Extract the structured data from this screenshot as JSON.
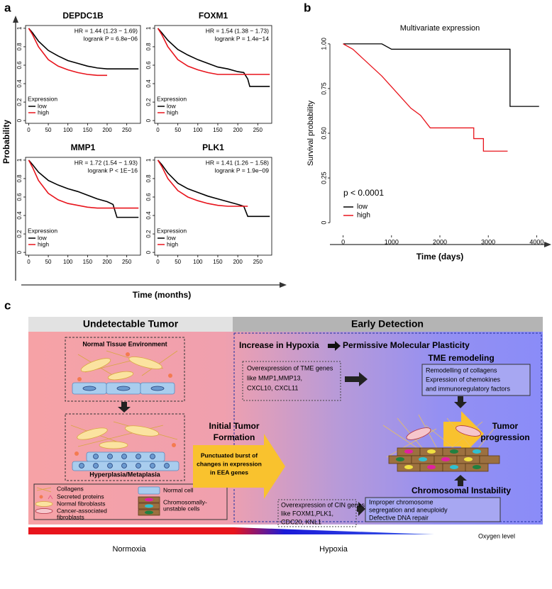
{
  "panel_a": {
    "label": "a",
    "xlabel": "Time (months)",
    "ylabel": "Probability"
  },
  "panel_b": {
    "label": "b"
  },
  "chart_data": [
    {
      "type": "line",
      "title": "DEPDC1B",
      "annotations": [
        "HR = 1.44 (1.23 − 1.69)",
        "logrank P = 6.8e−06"
      ],
      "legend_title": "Expression",
      "xlim": [
        -8,
        285
      ],
      "xticks": [
        0,
        50,
        100,
        150,
        200,
        250
      ],
      "ylim": [
        -0.03,
        1.03
      ],
      "yticks": [
        0,
        0.2,
        0.4,
        0.6,
        0.8,
        1
      ],
      "series": [
        {
          "name": "low",
          "color": "#000000",
          "x": [
            0,
            10,
            25,
            50,
            75,
            100,
            125,
            150,
            175,
            200,
            225,
            250,
            280
          ],
          "values": [
            1,
            0.95,
            0.86,
            0.76,
            0.7,
            0.65,
            0.62,
            0.59,
            0.57,
            0.56,
            0.56,
            0.56,
            0.56
          ]
        },
        {
          "name": "high",
          "color": "#e8141c",
          "x": [
            0,
            10,
            25,
            50,
            75,
            100,
            125,
            150,
            175,
            200
          ],
          "values": [
            1,
            0.93,
            0.8,
            0.66,
            0.59,
            0.55,
            0.52,
            0.5,
            0.49,
            0.49
          ]
        }
      ]
    },
    {
      "type": "line",
      "title": "FOXM1",
      "annotations": [
        "HR = 1.54 (1.38 − 1.73)",
        "logrank P = 1.4e−14"
      ],
      "legend_title": "Expression",
      "xlim": [
        -8,
        285
      ],
      "xticks": [
        0,
        50,
        100,
        150,
        200,
        250
      ],
      "ylim": [
        -0.03,
        1.03
      ],
      "yticks": [
        0,
        0.2,
        0.4,
        0.6,
        0.8,
        1
      ],
      "series": [
        {
          "name": "low",
          "color": "#000000",
          "x": [
            0,
            10,
            25,
            50,
            75,
            100,
            125,
            150,
            175,
            200,
            215,
            225,
            230,
            280
          ],
          "values": [
            1,
            0.95,
            0.87,
            0.77,
            0.71,
            0.66,
            0.62,
            0.58,
            0.56,
            0.53,
            0.52,
            0.45,
            0.37,
            0.37
          ]
        },
        {
          "name": "high",
          "color": "#e8141c",
          "x": [
            0,
            10,
            25,
            50,
            75,
            100,
            125,
            150,
            175,
            200,
            225,
            280
          ],
          "values": [
            1,
            0.93,
            0.8,
            0.66,
            0.59,
            0.55,
            0.52,
            0.5,
            0.5,
            0.5,
            0.5,
            0.5
          ]
        }
      ]
    },
    {
      "type": "line",
      "title": "MMP1",
      "annotations": [
        "HR = 1.72 (1.54 − 1.93)",
        "logrank P < 1E−16"
      ],
      "legend_title": "Expression",
      "xlim": [
        -8,
        285
      ],
      "xticks": [
        0,
        50,
        100,
        150,
        200,
        250
      ],
      "ylim": [
        -0.03,
        1.03
      ],
      "yticks": [
        0,
        0.2,
        0.4,
        0.6,
        0.8,
        1
      ],
      "series": [
        {
          "name": "low",
          "color": "#000000",
          "x": [
            0,
            10,
            25,
            50,
            75,
            100,
            125,
            150,
            175,
            200,
            215,
            225,
            280
          ],
          "values": [
            1,
            0.95,
            0.87,
            0.78,
            0.73,
            0.69,
            0.66,
            0.62,
            0.58,
            0.55,
            0.52,
            0.38,
            0.38
          ]
        },
        {
          "name": "high",
          "color": "#e8141c",
          "x": [
            0,
            10,
            25,
            50,
            75,
            100,
            125,
            150,
            175,
            200,
            225,
            280
          ],
          "values": [
            1,
            0.92,
            0.78,
            0.64,
            0.57,
            0.53,
            0.51,
            0.49,
            0.48,
            0.48,
            0.48,
            0.48
          ]
        }
      ]
    },
    {
      "type": "line",
      "title": "PLK1",
      "annotations": [
        "HR = 1.41 (1.26 − 1.58)",
        "logrank P = 1.9e−09"
      ],
      "legend_title": "Expression",
      "xlim": [
        -8,
        285
      ],
      "xticks": [
        0,
        50,
        100,
        150,
        200,
        250
      ],
      "ylim": [
        -0.03,
        1.03
      ],
      "yticks": [
        0,
        0.2,
        0.4,
        0.6,
        0.8,
        1
      ],
      "series": [
        {
          "name": "low",
          "color": "#000000",
          "x": [
            0,
            10,
            25,
            50,
            75,
            100,
            125,
            150,
            175,
            200,
            215,
            225,
            280
          ],
          "values": [
            1,
            0.95,
            0.86,
            0.75,
            0.69,
            0.65,
            0.61,
            0.58,
            0.55,
            0.52,
            0.5,
            0.39,
            0.39
          ]
        },
        {
          "name": "high",
          "color": "#e8141c",
          "x": [
            0,
            10,
            25,
            50,
            75,
            100,
            125,
            150,
            175,
            200,
            225
          ],
          "values": [
            1,
            0.93,
            0.8,
            0.67,
            0.6,
            0.56,
            0.53,
            0.51,
            0.5,
            0.5,
            0.5
          ]
        }
      ]
    },
    {
      "type": "line",
      "title": "Multivariate expression",
      "xlabel": "Time (days)",
      "ylabel": "Survival probability",
      "annotations": [
        "p < 0.0001"
      ],
      "xlim": [
        -200,
        4200
      ],
      "xticks": [
        0,
        1000,
        2000,
        3000,
        4000
      ],
      "ylim": [
        -0.055,
        1.055
      ],
      "yticks": [
        0,
        {
          "value": 0.25,
          "label": "0.25"
        },
        {
          "value": 0.5,
          "label": "0.50"
        },
        {
          "value": 0.75,
          "label": "0.75"
        },
        {
          "value": 1,
          "label": "1.00"
        }
      ],
      "series": [
        {
          "name": "low",
          "color": "#000000",
          "x": [
            0,
            500,
            800,
            1000,
            1500,
            2000,
            2500,
            3000,
            3450,
            3450,
            4050
          ],
          "values": [
            1,
            1,
            1,
            0.97,
            0.97,
            0.97,
            0.97,
            0.97,
            0.97,
            0.65,
            0.65
          ]
        },
        {
          "name": "high",
          "color": "#e8141c",
          "x": [
            0,
            200,
            400,
            600,
            800,
            1000,
            1200,
            1400,
            1600,
            1800,
            2500,
            2700,
            2700,
            2900,
            2900,
            3400
          ],
          "values": [
            1,
            0.97,
            0.92,
            0.87,
            0.82,
            0.76,
            0.7,
            0.64,
            0.6,
            0.53,
            0.53,
            0.53,
            0.47,
            0.47,
            0.4,
            0.4
          ]
        }
      ]
    }
  ],
  "diagram": {
    "label": "c",
    "header_left": "Undetectable Tumor",
    "header_right": "Early Detection",
    "normal_box_title": "Normal Tissue Environment",
    "hyperplasia_label": "Hyperplasia/Metaplasia",
    "legend": [
      [
        "Collagens"
      ],
      [
        "Secreted proteins"
      ],
      [
        "Normal fibroblasts"
      ],
      [
        "Cancer-associated",
        "fibroblasts"
      ],
      [
        "Normal cell"
      ],
      [
        "Chromosomally-",
        "unstable cells"
      ]
    ],
    "initial": [
      "Initial Tumor",
      "Formation"
    ],
    "burst": [
      "Punctuated burst of",
      "changes in expression",
      "in EEA genes"
    ],
    "hypoxia": "Increase in Hypoxia",
    "plasticity": "Permissive Molecular Plasticity",
    "tme_title": "TME remodeling",
    "tme_box": [
      "Remodelling of collagens",
      "Expression of chemokines",
      "and immunoregulatory factors"
    ],
    "tme_genes": [
      "Overexpression of TME genes",
      "like MMP1,MMP13,",
      "CXCL10, CXCL11"
    ],
    "cin_title": "Chromosomal Instability",
    "cin_box": [
      "Improper chromosome",
      "segregation and aneuploidy",
      "Defective DNA repair"
    ],
    "cin_genes": [
      "Overexpression of CIN genes",
      "like FOXM1,PLK1,",
      "CDC20, KNL1"
    ],
    "progression": [
      "Tumor",
      "progression"
    ],
    "oxygen": "Oxygen level",
    "normoxia": "Normoxia",
    "hypoxia_label": "Hypoxia"
  }
}
